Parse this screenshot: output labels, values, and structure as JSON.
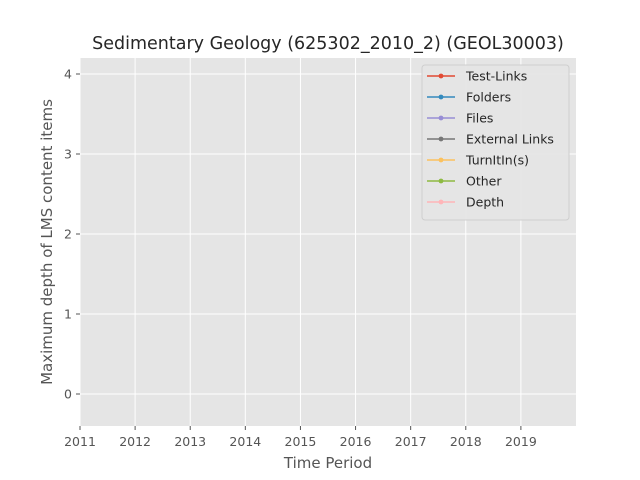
{
  "chart_data": {
    "type": "line",
    "title": "Sedimentary Geology (625302_2010_2) (GEOL30003)",
    "xlabel": "Time Period",
    "ylabel": "Maximum depth of LMS content items",
    "xlim": [
      2011,
      2020
    ],
    "ylim": [
      -0.4,
      4.2
    ],
    "x_ticks": [
      "2011",
      "2012",
      "2013",
      "2014",
      "2015",
      "2016",
      "2017",
      "2018",
      "2019"
    ],
    "y_ticks": [
      "0",
      "1",
      "2",
      "3",
      "4"
    ],
    "grid": true,
    "legend_position": "top-right",
    "series": [
      {
        "name": "Test-Links",
        "color": "#E24A33",
        "values": []
      },
      {
        "name": "Folders",
        "color": "#348ABD",
        "values": []
      },
      {
        "name": "Files",
        "color": "#988ED5",
        "values": []
      },
      {
        "name": "External Links",
        "color": "#777777",
        "values": []
      },
      {
        "name": "TurnItIn(s)",
        "color": "#FBC15E",
        "values": []
      },
      {
        "name": "Other",
        "color": "#8EBA42",
        "values": []
      },
      {
        "name": "Depth",
        "color": "#FFB5B8",
        "values": []
      }
    ]
  }
}
